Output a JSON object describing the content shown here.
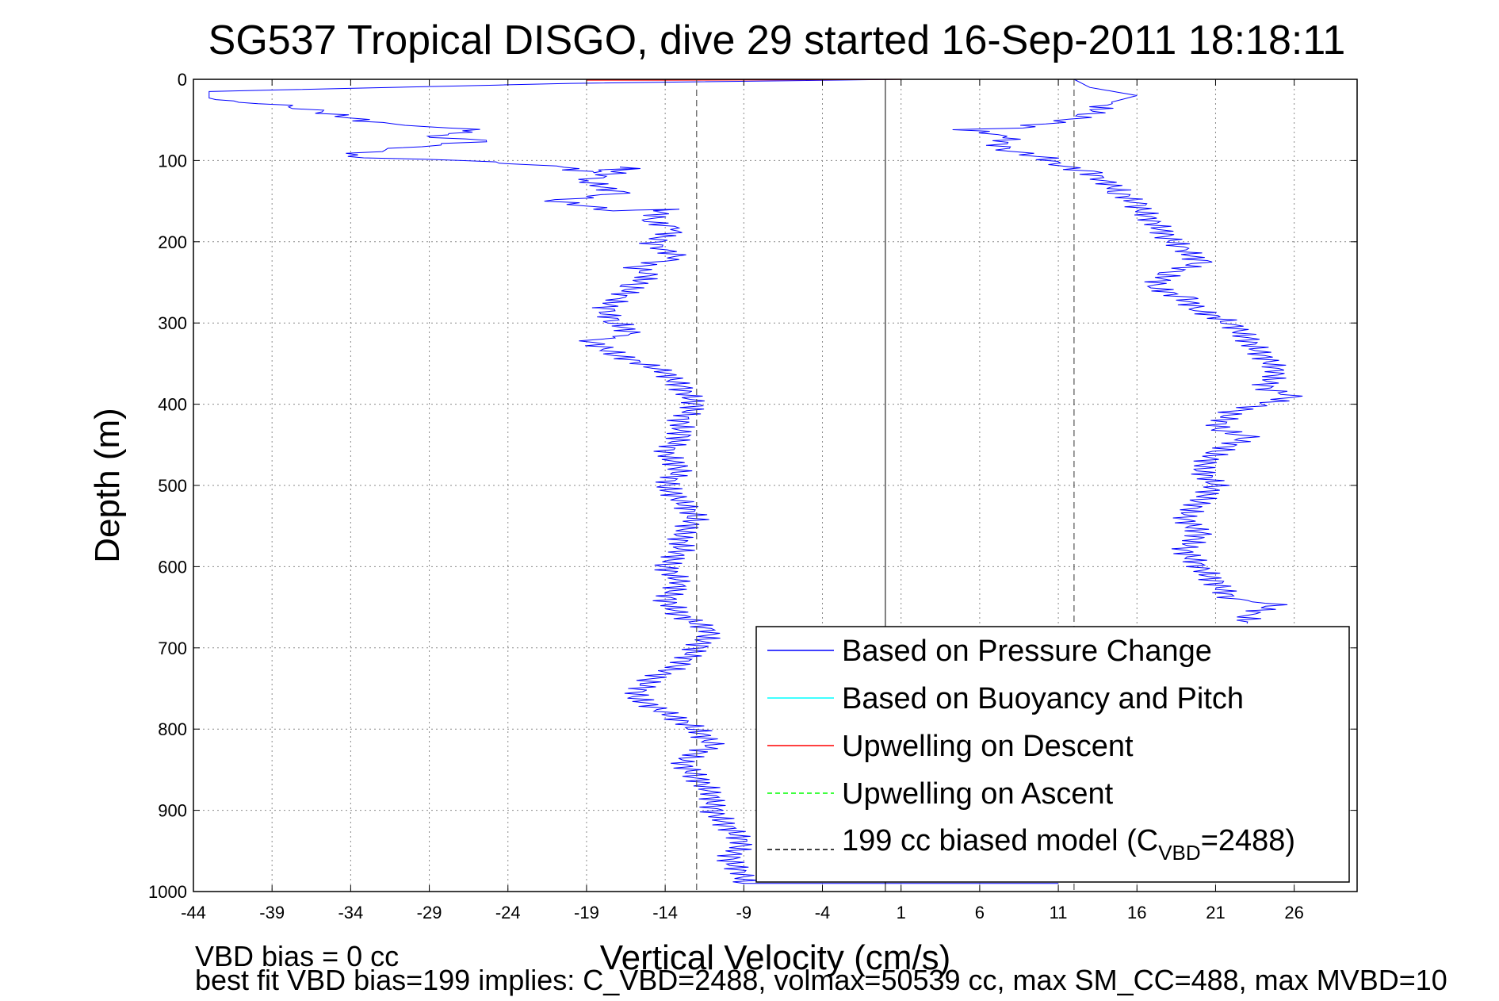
{
  "chart_data": {
    "type": "line",
    "title": "SG537 Tropical DISGO, dive 29 started 16-Sep-2011 18:18:11",
    "xlabel": "Vertical Velocity (cm/s)",
    "ylabel": "Depth (m)",
    "xlim": [
      -44,
      30
    ],
    "ylim": [
      0,
      1000
    ],
    "y_reversed": true,
    "grid": true,
    "legend_position": "lower-right",
    "xticks": [
      -44,
      -39,
      -34,
      -29,
      -24,
      -19,
      -14,
      -9,
      -4,
      1,
      6,
      11,
      16,
      21,
      26
    ],
    "yticks": [
      0,
      100,
      200,
      300,
      400,
      500,
      600,
      700,
      800,
      900,
      1000
    ],
    "legend": {
      "pressure": "Based on Pressure Change",
      "buoyancy": "Based on Buoyancy and Pitch",
      "up_descent": "Upwelling on Descent",
      "up_ascent": "Upwelling on Ascent",
      "model_pre": "199 cc biased model (C",
      "model_sub": "VBD",
      "model_post": "=2488)"
    },
    "colors": {
      "pressure": "#0000ff",
      "buoyancy": "#00ffff",
      "up_descent": "#ff0000",
      "up_ascent": "#00ff00",
      "model": "#000000"
    },
    "series": [
      {
        "name": "Based on Pressure Change",
        "phase": "descent",
        "points": [
          [
            1,
            0
          ],
          [
            -20,
            5
          ],
          [
            -43,
            15
          ],
          [
            -43,
            25
          ],
          [
            -39,
            30
          ],
          [
            -36,
            40
          ],
          [
            -32,
            55
          ],
          [
            -27,
            60
          ],
          [
            -26,
            65
          ],
          [
            -30,
            70
          ],
          [
            -25,
            75
          ],
          [
            -31,
            85
          ],
          [
            -35,
            95
          ],
          [
            -27,
            100
          ],
          [
            -22,
            105
          ],
          [
            -20,
            110
          ],
          [
            -19,
            115
          ],
          [
            -16,
            108
          ],
          [
            -19,
            125
          ],
          [
            -17,
            140
          ],
          [
            -21,
            150
          ],
          [
            -17,
            162
          ],
          [
            -14,
            160
          ],
          [
            -15,
            175
          ],
          [
            -13,
            185
          ],
          [
            -15,
            200
          ],
          [
            -14,
            210
          ],
          [
            -13,
            220
          ],
          [
            -16,
            230
          ],
          [
            -15,
            240
          ],
          [
            -16,
            255
          ],
          [
            -17,
            270
          ],
          [
            -18,
            285
          ],
          [
            -17,
            300
          ],
          [
            -16,
            315
          ],
          [
            -19,
            320
          ],
          [
            -17,
            340
          ],
          [
            -14,
            360
          ],
          [
            -13,
            380
          ],
          [
            -12,
            400
          ],
          [
            -13,
            420
          ],
          [
            -13,
            440
          ],
          [
            -14,
            460
          ],
          [
            -13,
            480
          ],
          [
            -14,
            500
          ],
          [
            -13,
            520
          ],
          [
            -12,
            540
          ],
          [
            -13,
            560
          ],
          [
            -13,
            580
          ],
          [
            -14,
            600
          ],
          [
            -13,
            620
          ],
          [
            -14,
            640
          ],
          [
            -13,
            660
          ],
          [
            -11,
            680
          ],
          [
            -12,
            700
          ],
          [
            -13,
            720
          ],
          [
            -15,
            740
          ],
          [
            -16,
            760
          ],
          [
            -14,
            780
          ],
          [
            -12,
            800
          ],
          [
            -11,
            820
          ],
          [
            -13,
            840
          ],
          [
            -12,
            860
          ],
          [
            -11,
            880
          ],
          [
            -11,
            900
          ],
          [
            -10,
            920
          ],
          [
            -9,
            940
          ],
          [
            -10,
            960
          ],
          [
            -9,
            980
          ],
          [
            -9,
            990
          ],
          [
            11,
            990
          ]
        ]
      },
      {
        "name": "Based on Pressure Change",
        "phase": "ascent",
        "points": [
          [
            12,
            0
          ],
          [
            13,
            10
          ],
          [
            16,
            20
          ],
          [
            14,
            30
          ],
          [
            13,
            45
          ],
          [
            10,
            55
          ],
          [
            8,
            60
          ],
          [
            5,
            62
          ],
          [
            8,
            70
          ],
          [
            7,
            85
          ],
          [
            10,
            95
          ],
          [
            11,
            105
          ],
          [
            13,
            115
          ],
          [
            14,
            125
          ],
          [
            15,
            140
          ],
          [
            16,
            155
          ],
          [
            17,
            175
          ],
          [
            18,
            195
          ],
          [
            19,
            210
          ],
          [
            20,
            225
          ],
          [
            18,
            240
          ],
          [
            17,
            255
          ],
          [
            19,
            270
          ],
          [
            20,
            285
          ],
          [
            22,
            300
          ],
          [
            23,
            320
          ],
          [
            24,
            340
          ],
          [
            25,
            360
          ],
          [
            24,
            380
          ],
          [
            26,
            390
          ],
          [
            22,
            410
          ],
          [
            21,
            430
          ],
          [
            23,
            440
          ],
          [
            21,
            460
          ],
          [
            20,
            480
          ],
          [
            21,
            500
          ],
          [
            20,
            520
          ],
          [
            19,
            540
          ],
          [
            20,
            560
          ],
          [
            19,
            580
          ],
          [
            20,
            600
          ],
          [
            21,
            620
          ],
          [
            22,
            640
          ],
          [
            25,
            645
          ],
          [
            23,
            660
          ],
          [
            23,
            670
          ]
        ]
      },
      {
        "name": "Upwelling on Descent",
        "points": [
          [
            -19,
            1
          ],
          [
            -14,
            1
          ],
          [
            -4,
            0.5
          ],
          [
            1,
            0
          ]
        ]
      },
      {
        "name": "199 cc biased model (CVBD=2488)",
        "style": "dashed",
        "points": [
          [
            -12,
            0
          ],
          [
            -12,
            1000
          ]
        ]
      },
      {
        "name": "199 cc biased model (CVBD=2488)",
        "style": "dashed",
        "points": [
          [
            12,
            0
          ],
          [
            12,
            1000
          ]
        ]
      },
      {
        "name": "zero reference",
        "style": "solid",
        "points": [
          [
            0,
            0
          ],
          [
            0,
            1000
          ]
        ]
      }
    ],
    "annotations": {
      "vbd_bias": "VBD bias = 0 cc",
      "best_fit": "best fit VBD bias=199 implies: C_VBD=2488, volmax=50539 cc, max SM_CC=488, max MVBD=10"
    }
  }
}
